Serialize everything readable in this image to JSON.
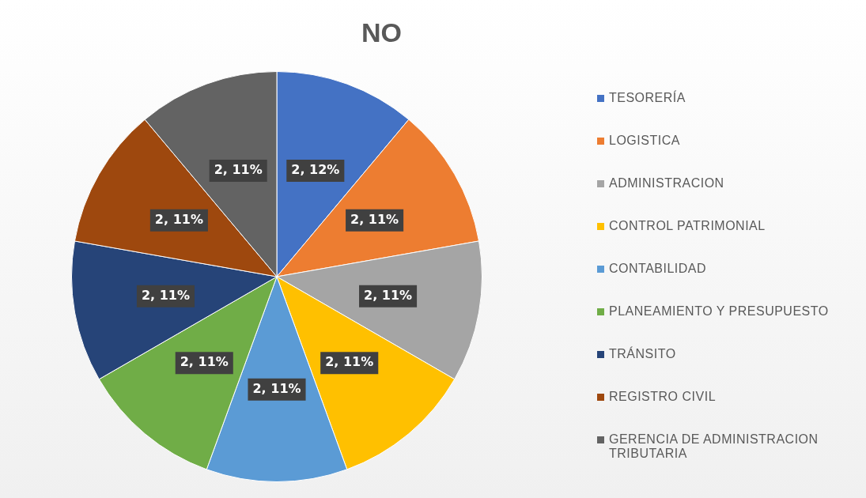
{
  "chart_data": {
    "type": "pie",
    "title": "NO",
    "categories": [
      "TESORERÍA",
      "LOGISTICA",
      "ADMINISTRACION",
      "CONTROL PATRIMONIAL",
      "CONTABILIDAD",
      "PLANEAMIENTO Y PRESUPUESTO",
      "TRÁNSITO",
      "REGISTRO CIVIL",
      "GERENCIA DE ADMINISTRACION TRIBUTARIA"
    ],
    "values": [
      2,
      2,
      2,
      2,
      2,
      2,
      2,
      2,
      2
    ],
    "value_labels": [
      "2, 12%",
      "2, 11%",
      "2, 11%",
      "2, 11%",
      "2, 11%",
      "2, 11%",
      "2, 11%",
      "2, 11%",
      "2, 11%"
    ],
    "colors": [
      "#4472c4",
      "#ed7d31",
      "#a5a5a5",
      "#ffc000",
      "#5b9bd5",
      "#70ad47",
      "#264478",
      "#9e480e",
      "#636363"
    ],
    "legend": "right"
  }
}
